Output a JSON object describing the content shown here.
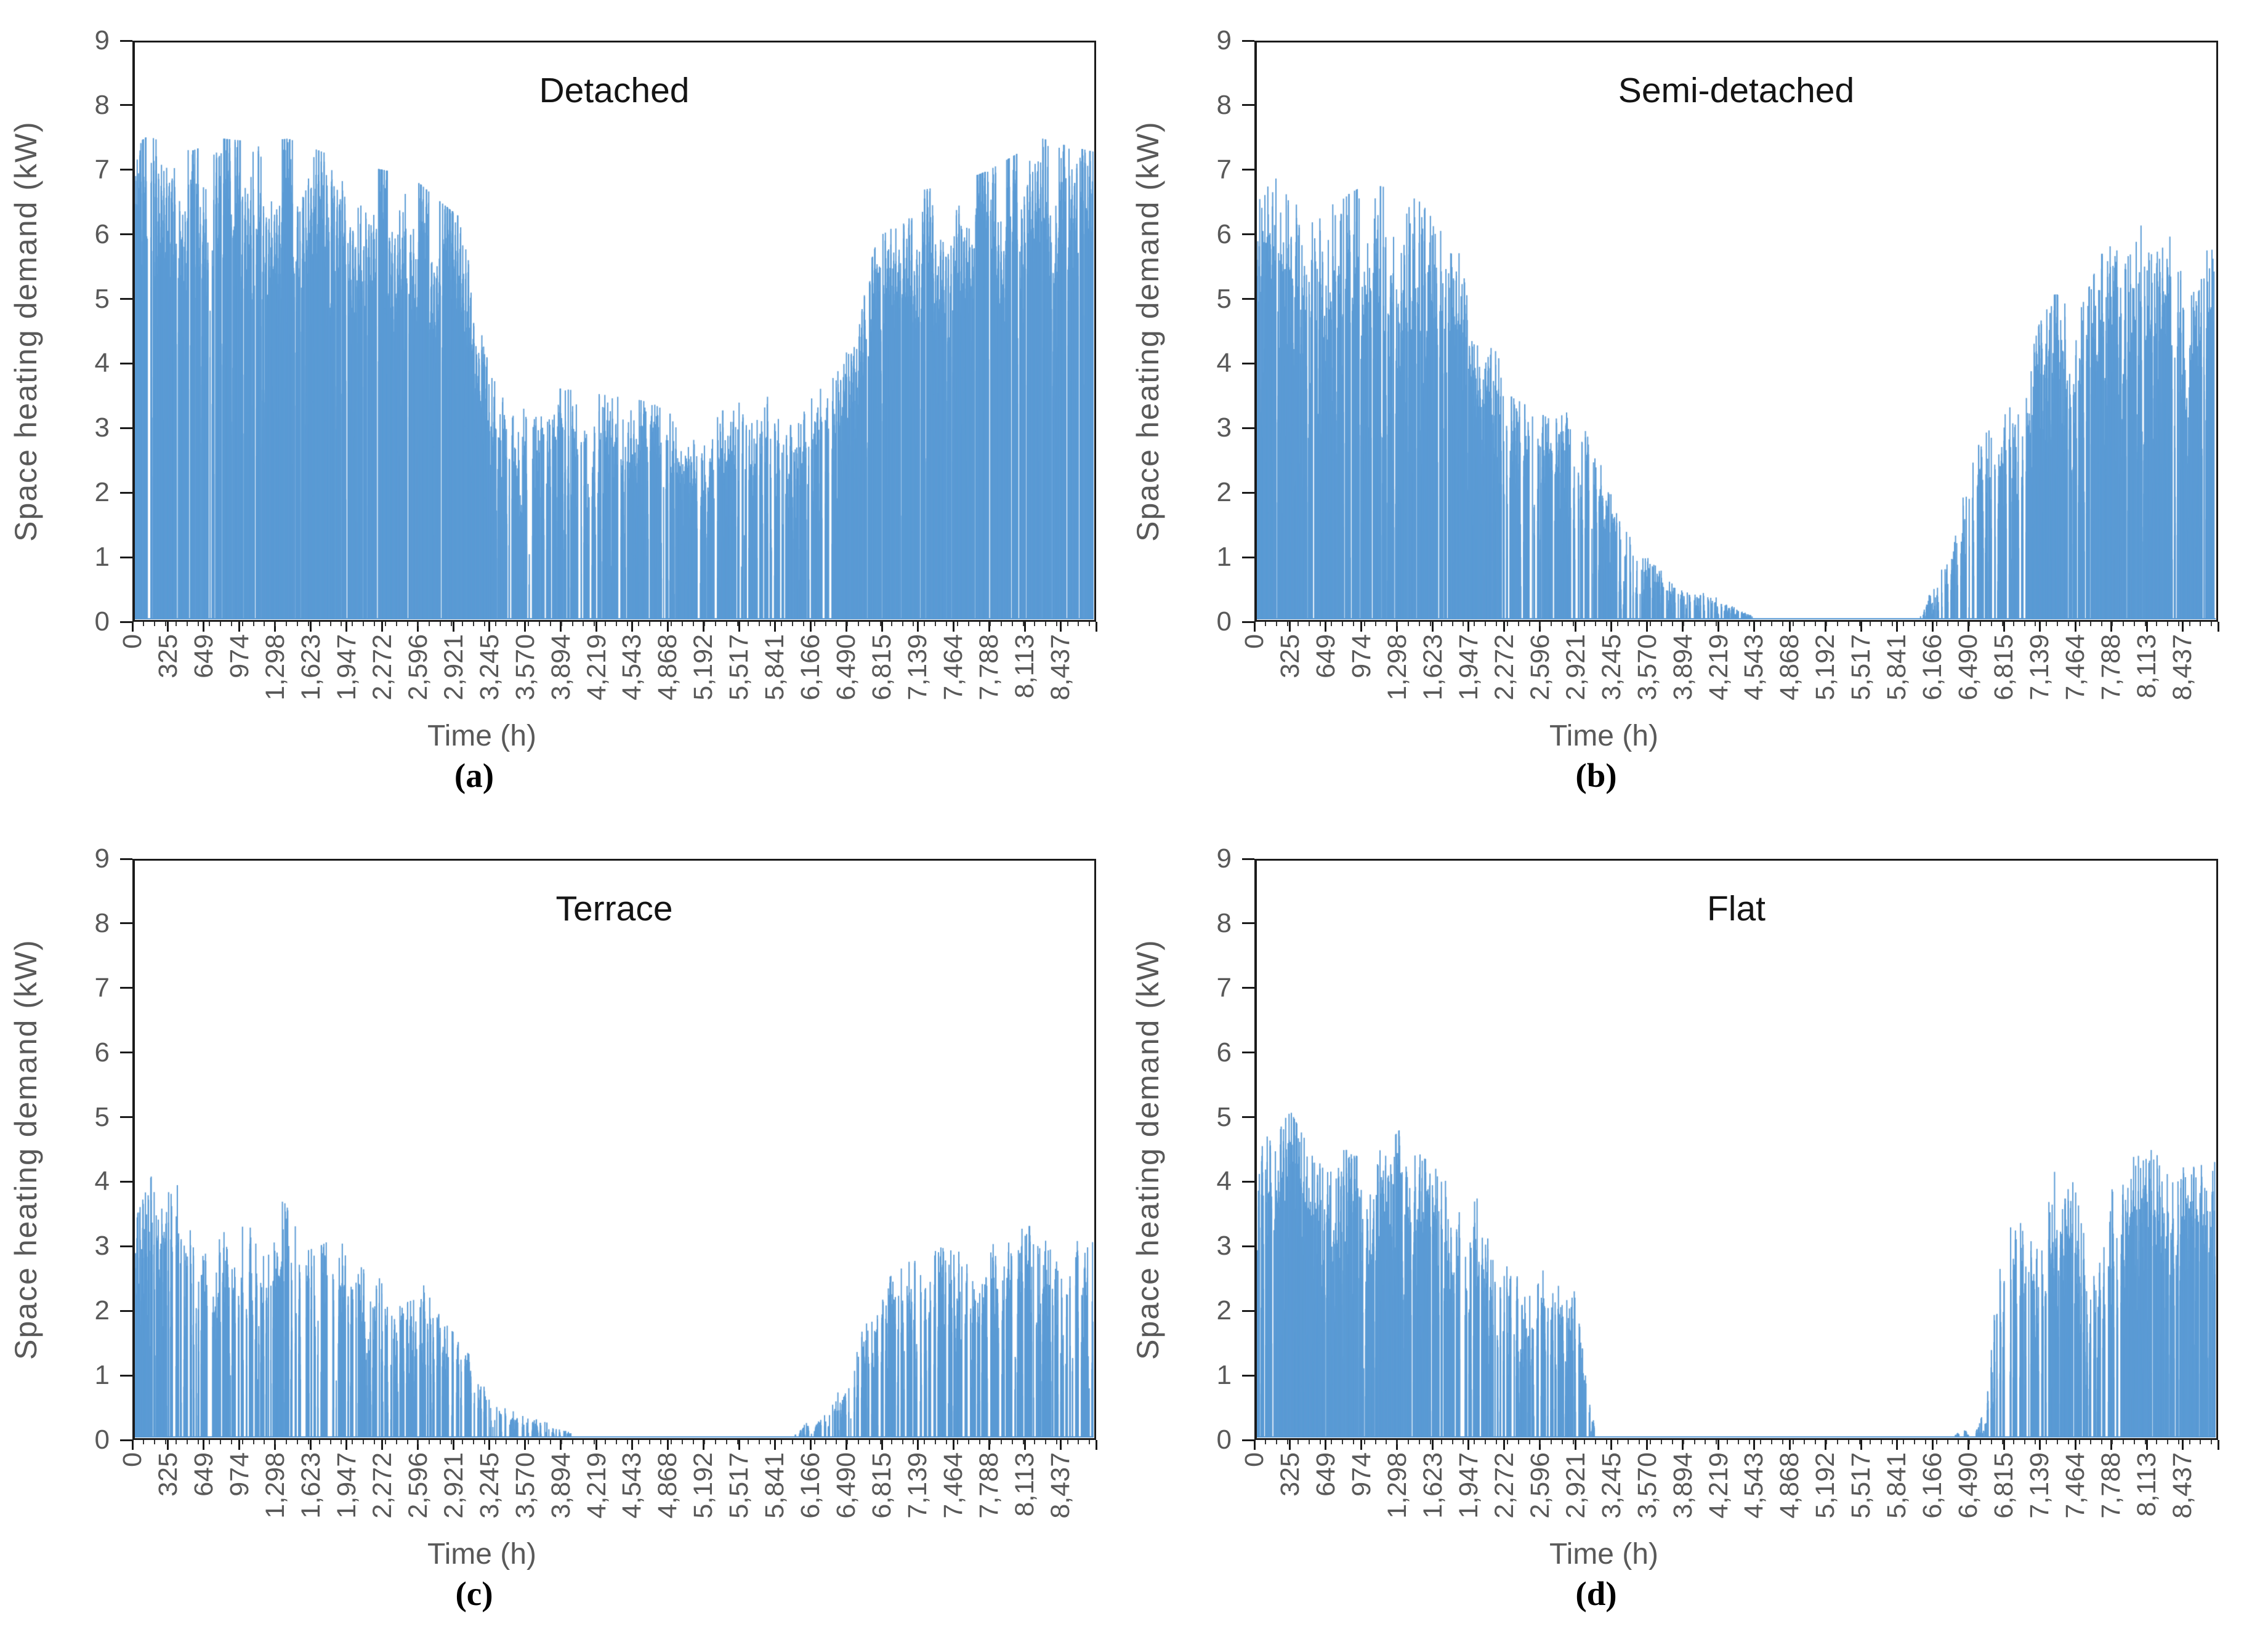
{
  "style": {
    "background": "#ffffff",
    "bar_color": "#5B9BD5",
    "axis_color": "#1b1b1b",
    "tick_label_color": "#595959",
    "title_color": "#141414",
    "caption_color": "#000000"
  },
  "chart_data": [
    {
      "type": "bar",
      "panel_label": "(a)",
      "title": "Detached",
      "xlabel": "Time (h)",
      "ylabel": "Space heating demand (kW)",
      "n_hours": 8760,
      "ylim": [
        0,
        9
      ],
      "y_ticks": [
        0,
        1,
        2,
        3,
        4,
        5,
        6,
        7,
        8,
        9
      ],
      "x_tick_labels": [
        "0",
        "325",
        "649",
        "974",
        "1,298",
        "1,623",
        "1,947",
        "2,272",
        "2,596",
        "2,921",
        "3,245",
        "3,570",
        "3,894",
        "4,219",
        "4,543",
        "4,868",
        "5,192",
        "5,517",
        "5,841",
        "6,166",
        "6,490",
        "6,815",
        "7,139",
        "7,464",
        "7,788",
        "8,113",
        "8,437"
      ],
      "grid": false,
      "legend": "none",
      "bar_color": "#5B9BD5",
      "envelope_kw": [
        [
          0,
          7.4
        ],
        [
          200,
          7.65
        ],
        [
          500,
          7.3
        ],
        [
          800,
          7.5
        ],
        [
          1100,
          7.45
        ],
        [
          1400,
          7.5
        ],
        [
          1700,
          7.3
        ],
        [
          2000,
          7.1
        ],
        [
          2300,
          7.0
        ],
        [
          2600,
          6.8
        ],
        [
          2800,
          6.5
        ],
        [
          2950,
          6.3
        ],
        [
          3100,
          5.2
        ],
        [
          3245,
          3.8
        ],
        [
          3500,
          3.6
        ],
        [
          3900,
          3.6
        ],
        [
          4300,
          3.5
        ],
        [
          4700,
          3.4
        ],
        [
          5000,
          3.1
        ],
        [
          5200,
          3.0
        ],
        [
          5400,
          3.3
        ],
        [
          5700,
          3.5
        ],
        [
          6000,
          3.4
        ],
        [
          6166,
          3.6
        ],
        [
          6400,
          3.9
        ],
        [
          6600,
          4.8
        ],
        [
          6815,
          6.1
        ],
        [
          7000,
          6.5
        ],
        [
          7200,
          6.7
        ],
        [
          7500,
          6.8
        ],
        [
          7800,
          7.0
        ],
        [
          8100,
          7.3
        ],
        [
          8300,
          7.5
        ],
        [
          8500,
          7.4
        ],
        [
          8759,
          7.3
        ]
      ],
      "high_fill": true,
      "zero_run_prob": 0.01,
      "seed": 7
    },
    {
      "type": "bar",
      "panel_label": "(b)",
      "title": "Semi-detached",
      "xlabel": "Time (h)",
      "ylabel": "Space heating demand (kW)",
      "n_hours": 8760,
      "ylim": [
        0,
        9
      ],
      "y_ticks": [
        0,
        1,
        2,
        3,
        4,
        5,
        6,
        7,
        8,
        9
      ],
      "x_tick_labels": [
        "0",
        "325",
        "649",
        "974",
        "1,298",
        "1,623",
        "1,947",
        "2,272",
        "2,596",
        "2,921",
        "3,245",
        "3,570",
        "3,894",
        "4,219",
        "4,543",
        "4,868",
        "5,192",
        "5,517",
        "5,841",
        "6,166",
        "6,490",
        "6,815",
        "7,139",
        "7,464",
        "7,788",
        "8,113",
        "8,437"
      ],
      "grid": false,
      "legend": "none",
      "bar_color": "#5B9BD5",
      "envelope_kw": [
        [
          0,
          6.5
        ],
        [
          150,
          6.9
        ],
        [
          400,
          6.6
        ],
        [
          700,
          6.5
        ],
        [
          1000,
          6.8
        ],
        [
          1300,
          6.7
        ],
        [
          1500,
          6.5
        ],
        [
          1700,
          6.0
        ],
        [
          1900,
          5.6
        ],
        [
          2100,
          4.8
        ],
        [
          2300,
          3.5
        ],
        [
          2500,
          3.3
        ],
        [
          2700,
          3.1
        ],
        [
          2900,
          3.3
        ],
        [
          3050,
          3.2
        ],
        [
          3200,
          2.2
        ],
        [
          3400,
          1.3
        ],
        [
          3600,
          0.9
        ],
        [
          3800,
          0.6
        ],
        [
          4000,
          0.45
        ],
        [
          4200,
          0.35
        ],
        [
          4400,
          0.15
        ],
        [
          4600,
          0
        ],
        [
          6050,
          0
        ],
        [
          6200,
          0.6
        ],
        [
          6350,
          1.2
        ],
        [
          6500,
          2.2
        ],
        [
          6650,
          3.0
        ],
        [
          6800,
          3.1
        ],
        [
          7000,
          3.6
        ],
        [
          7150,
          4.6
        ],
        [
          7300,
          5.1
        ],
        [
          7500,
          4.7
        ],
        [
          7700,
          5.6
        ],
        [
          7900,
          6.5
        ],
        [
          8100,
          6.4
        ],
        [
          8300,
          6.4
        ],
        [
          8500,
          6.0
        ],
        [
          8650,
          6.3
        ],
        [
          8759,
          6.4
        ]
      ],
      "high_fill": false,
      "zero_run_prob": 0.016,
      "seed": 21
    },
    {
      "type": "bar",
      "panel_label": "(c)",
      "title": "Terrace",
      "xlabel": "Time (h)",
      "ylabel": "Space heating demand (kW)",
      "n_hours": 8760,
      "ylim": [
        0,
        9
      ],
      "y_ticks": [
        0,
        1,
        2,
        3,
        4,
        5,
        6,
        7,
        8,
        9
      ],
      "x_tick_labels": [
        "0",
        "325",
        "649",
        "974",
        "1,298",
        "1,623",
        "1,947",
        "2,272",
        "2,596",
        "2,921",
        "3,245",
        "3,570",
        "3,894",
        "4,219",
        "4,543",
        "4,868",
        "5,192",
        "5,517",
        "5,841",
        "6,166",
        "6,490",
        "6,815",
        "7,139",
        "7,464",
        "7,788",
        "8,113",
        "8,437"
      ],
      "grid": false,
      "legend": "none",
      "bar_color": "#5B9BD5",
      "envelope_kw": [
        [
          0,
          3.4
        ],
        [
          150,
          4.1
        ],
        [
          300,
          4.4
        ],
        [
          450,
          3.6
        ],
        [
          600,
          2.8
        ],
        [
          800,
          3.2
        ],
        [
          1000,
          3.3
        ],
        [
          1200,
          3.2
        ],
        [
          1350,
          3.7
        ],
        [
          1500,
          3.3
        ],
        [
          1700,
          3.0
        ],
        [
          1900,
          3.2
        ],
        [
          2100,
          2.9
        ],
        [
          2300,
          2.5
        ],
        [
          2500,
          2.1
        ],
        [
          2650,
          2.4
        ],
        [
          2800,
          2.0
        ],
        [
          2950,
          1.5
        ],
        [
          3100,
          1.2
        ],
        [
          3300,
          0.6
        ],
        [
          3600,
          0.35
        ],
        [
          3900,
          0.15
        ],
        [
          4050,
          0
        ],
        [
          6000,
          0
        ],
        [
          6150,
          0.25
        ],
        [
          6350,
          0.4
        ],
        [
          6500,
          1.0
        ],
        [
          6700,
          1.9
        ],
        [
          6900,
          2.5
        ],
        [
          7100,
          2.9
        ],
        [
          7300,
          3.0
        ],
        [
          7500,
          2.9
        ],
        [
          7700,
          2.9
        ],
        [
          7900,
          3.1
        ],
        [
          8100,
          3.3
        ],
        [
          8300,
          3.3
        ],
        [
          8500,
          3.2
        ],
        [
          8759,
          3.2
        ]
      ],
      "high_fill": false,
      "zero_run_prob": 0.02,
      "seed": 33
    },
    {
      "type": "bar",
      "panel_label": "(d)",
      "title": "Flat",
      "xlabel": "Time (h)",
      "ylabel": "Space heating demand (kW)",
      "n_hours": 8760,
      "ylim": [
        0,
        9
      ],
      "y_ticks": [
        0,
        1,
        2,
        3,
        4,
        5,
        6,
        7,
        8,
        9
      ],
      "x_tick_labels": [
        "0",
        "325",
        "649",
        "974",
        "1,298",
        "1,623",
        "1,947",
        "2,272",
        "2,596",
        "2,921",
        "3,245",
        "3,570",
        "3,894",
        "4,219",
        "4,543",
        "4,868",
        "5,192",
        "5,517",
        "5,841",
        "6,166",
        "6,490",
        "6,815",
        "7,139",
        "7,464",
        "7,788",
        "8,113",
        "8,437"
      ],
      "grid": false,
      "legend": "none",
      "bar_color": "#5B9BD5",
      "envelope_kw": [
        [
          0,
          4.4
        ],
        [
          150,
          4.9
        ],
        [
          300,
          5.1
        ],
        [
          450,
          4.6
        ],
        [
          600,
          4.2
        ],
        [
          800,
          4.5
        ],
        [
          1000,
          4.3
        ],
        [
          1200,
          4.6
        ],
        [
          1350,
          4.9
        ],
        [
          1500,
          4.4
        ],
        [
          1700,
          4.1
        ],
        [
          1850,
          3.5
        ],
        [
          2000,
          4.1
        ],
        [
          2150,
          3.2
        ],
        [
          2300,
          2.9
        ],
        [
          2450,
          2.2
        ],
        [
          2600,
          3.0
        ],
        [
          2750,
          2.6
        ],
        [
          2900,
          2.4
        ],
        [
          3000,
          1.0
        ],
        [
          3100,
          0
        ],
        [
          6350,
          0
        ],
        [
          6450,
          0.15
        ],
        [
          6550,
          0
        ],
        [
          6650,
          0.5
        ],
        [
          6750,
          2.2
        ],
        [
          6900,
          3.7
        ],
        [
          7050,
          3.2
        ],
        [
          7200,
          3.9
        ],
        [
          7350,
          4.3
        ],
        [
          7500,
          4.2
        ],
        [
          7650,
          3.0
        ],
        [
          7800,
          4.0
        ],
        [
          7950,
          4.3
        ],
        [
          8100,
          4.6
        ],
        [
          8300,
          4.3
        ],
        [
          8500,
          4.2
        ],
        [
          8759,
          4.3
        ]
      ],
      "high_fill": false,
      "zero_run_prob": 0.02,
      "seed": 47
    }
  ]
}
